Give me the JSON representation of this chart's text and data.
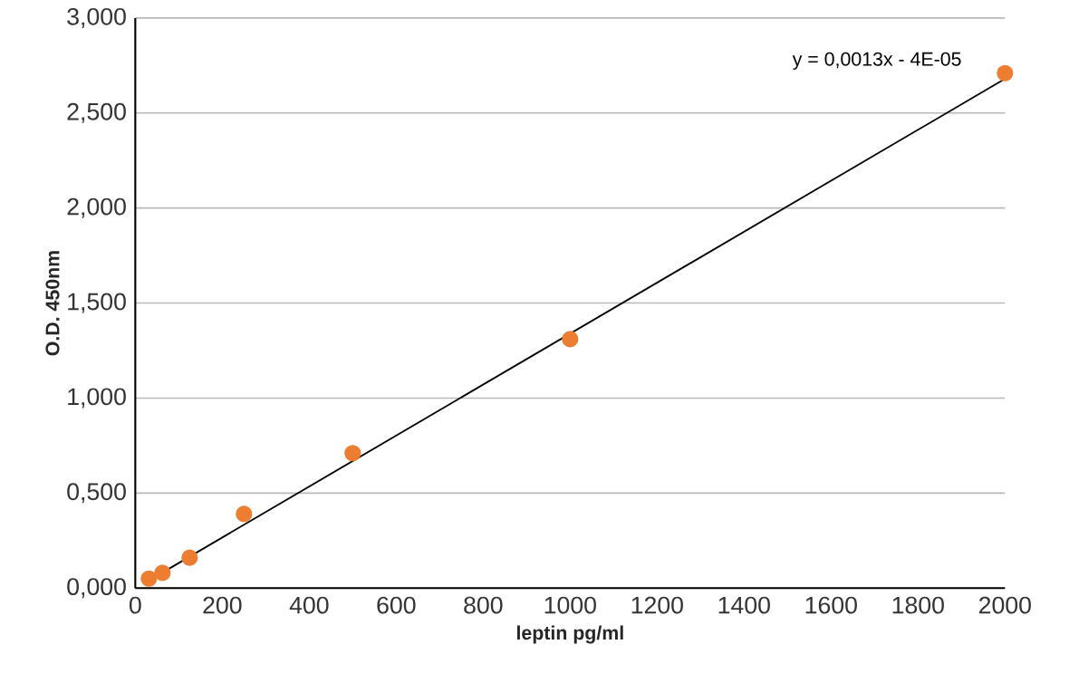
{
  "chart_data": {
    "type": "scatter",
    "xlabel": "leptin pg/ml",
    "ylabel": "O.D.  450nm",
    "annotations": [
      "y = 0,0013x - 4E-05"
    ],
    "xlim": [
      0,
      2000
    ],
    "xticks": [
      0,
      200,
      400,
      600,
      800,
      1000,
      1200,
      1400,
      1600,
      1800,
      2000
    ],
    "ylim": [
      0,
      3
    ],
    "yticks": [
      {
        "value": 0,
        "label": "0,000"
      },
      {
        "value": 0.5,
        "label": "0,500"
      },
      {
        "value": 1,
        "label": "1,000"
      },
      {
        "value": 1.5,
        "label": "1,500"
      },
      {
        "value": 2,
        "label": "2,000"
      },
      {
        "value": 2.5,
        "label": "2,500"
      },
      {
        "value": 3,
        "label": "3,000"
      }
    ],
    "grid": "y",
    "series": [
      {
        "type": "scatter",
        "marker": "circle",
        "color": "#ed7d31",
        "x": [
          31.25,
          62.5,
          125,
          250,
          500,
          1000,
          2000
        ],
        "values": [
          0.05,
          0.08,
          0.16,
          0.39,
          0.71,
          1.31,
          2.71
        ]
      },
      {
        "type": "line",
        "color": "#000000",
        "x": [
          31.25,
          2000
        ],
        "values": [
          0.04,
          2.68
        ]
      }
    ]
  }
}
